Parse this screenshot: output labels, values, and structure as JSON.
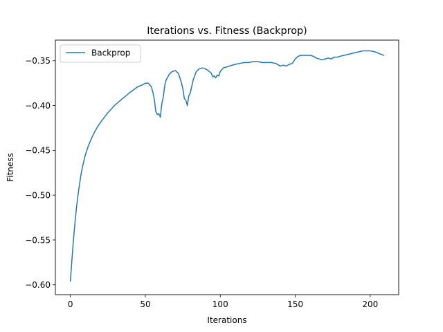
{
  "chart_data": {
    "type": "line",
    "title": "Iterations vs. Fitness (Backprop)",
    "xlabel": "Iterations",
    "ylabel": "Fitness",
    "xlim": [
      -10,
      219
    ],
    "ylim": [
      -0.611,
      -0.327
    ],
    "xticks": [
      0,
      50,
      100,
      150,
      200
    ],
    "xtick_labels": [
      "0",
      "50",
      "100",
      "150",
      "200"
    ],
    "yticks": [
      -0.6,
      -0.55,
      -0.5,
      -0.45,
      -0.4,
      -0.35
    ],
    "ytick_labels": [
      "−0.60",
      "−0.55",
      "−0.50",
      "−0.45",
      "−0.40",
      "−0.35"
    ],
    "grid": false,
    "legend_position": "upper-left",
    "series": [
      {
        "name": "Backprop",
        "color": "#1f77b4",
        "x": [
          0,
          1,
          2,
          3,
          4,
          5,
          6,
          7,
          8,
          10,
          12,
          14,
          16,
          18,
          20,
          25,
          30,
          35,
          40,
          45,
          48,
          50,
          52,
          54,
          55,
          56,
          57,
          58,
          59,
          60,
          61,
          62,
          63,
          64,
          66,
          68,
          70,
          72,
          74,
          75,
          76,
          77,
          78,
          79,
          80,
          82,
          84,
          86,
          88,
          90,
          92,
          94,
          95,
          96,
          97,
          98,
          99,
          100,
          101,
          102,
          104,
          106,
          108,
          110,
          113,
          116,
          119,
          122,
          125,
          128,
          131,
          134,
          137,
          140,
          142,
          144,
          146,
          148,
          150,
          152,
          154,
          156,
          158,
          160,
          162,
          164,
          166,
          168,
          170,
          172,
          174,
          176,
          178,
          180,
          185,
          190,
          195,
          200,
          203,
          206,
          209
        ],
        "y": [
          -0.596,
          -0.573,
          -0.551,
          -0.532,
          -0.515,
          -0.501,
          -0.489,
          -0.478,
          -0.469,
          -0.455,
          -0.445,
          -0.437,
          -0.43,
          -0.424,
          -0.419,
          -0.408,
          -0.399,
          -0.392,
          -0.385,
          -0.379,
          -0.377,
          -0.375,
          -0.375,
          -0.379,
          -0.385,
          -0.393,
          -0.407,
          -0.41,
          -0.409,
          -0.413,
          -0.398,
          -0.39,
          -0.377,
          -0.371,
          -0.365,
          -0.362,
          -0.361,
          -0.364,
          -0.374,
          -0.381,
          -0.392,
          -0.394,
          -0.4,
          -0.389,
          -0.386,
          -0.371,
          -0.362,
          -0.359,
          -0.358,
          -0.359,
          -0.361,
          -0.364,
          -0.368,
          -0.367,
          -0.369,
          -0.366,
          -0.367,
          -0.362,
          -0.36,
          -0.358,
          -0.357,
          -0.356,
          -0.355,
          -0.354,
          -0.353,
          -0.352,
          -0.352,
          -0.351,
          -0.351,
          -0.352,
          -0.352,
          -0.352,
          -0.353,
          -0.356,
          -0.355,
          -0.356,
          -0.354,
          -0.353,
          -0.348,
          -0.345,
          -0.344,
          -0.344,
          -0.344,
          -0.344,
          -0.345,
          -0.347,
          -0.348,
          -0.349,
          -0.348,
          -0.347,
          -0.348,
          -0.346,
          -0.346,
          -0.345,
          -0.343,
          -0.341,
          -0.339,
          -0.339,
          -0.34,
          -0.342,
          -0.344
        ]
      }
    ]
  }
}
